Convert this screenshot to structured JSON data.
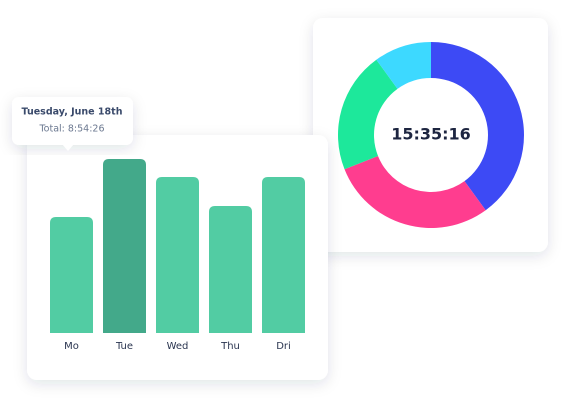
{
  "chart_data": [
    {
      "type": "bar",
      "categories": [
        "Mo",
        "Tue",
        "Wed",
        "Thu",
        "Dri"
      ],
      "values": [
        116,
        174,
        156,
        127,
        156
      ],
      "colors": [
        "#52cca3",
        "#43a98a",
        "#52cca3",
        "#52cca3",
        "#52cca3"
      ],
      "ylim": [
        0,
        180
      ],
      "annotation": {
        "title": "Tuesday, June 18th",
        "text": "Total: 8:54:26"
      }
    },
    {
      "type": "donut",
      "values": [
        40,
        29,
        21,
        10
      ],
      "colors": [
        "#3d4af5",
        "#ff3d8f",
        "#1de89b",
        "#3dd9ff"
      ],
      "center_label": "15:35:16"
    }
  ]
}
